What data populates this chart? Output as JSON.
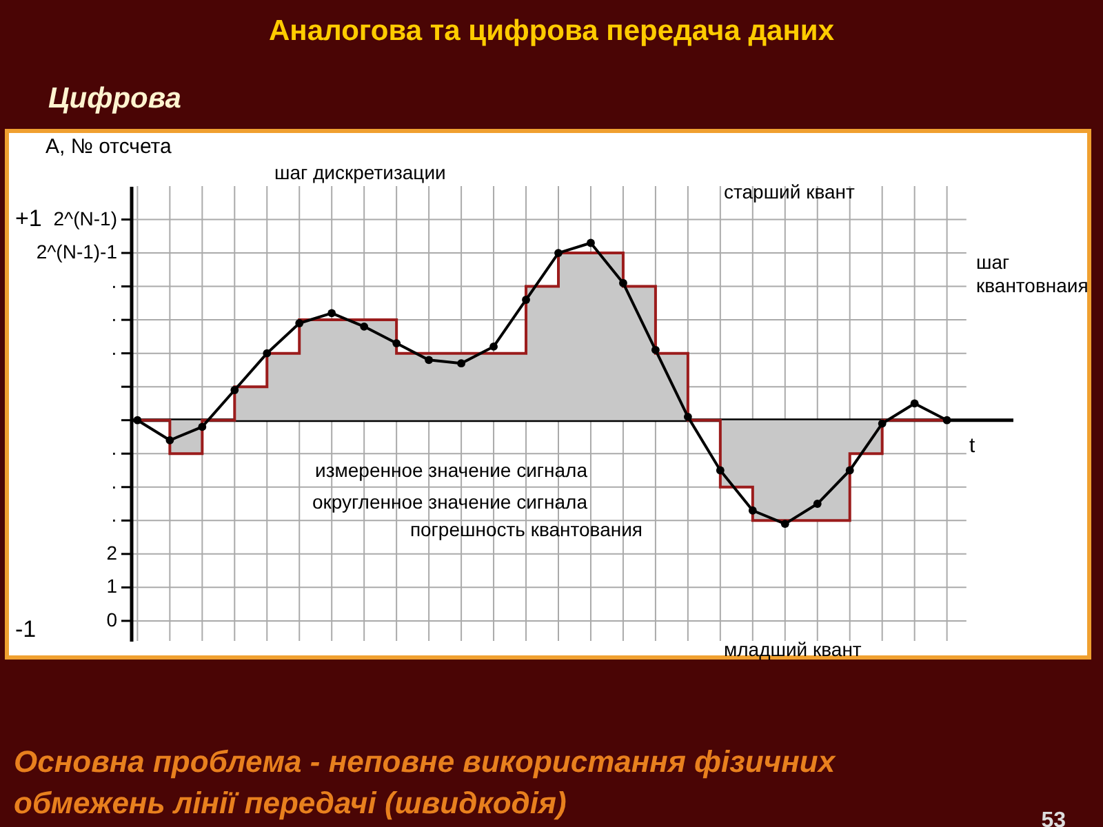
{
  "chart_data": {
    "type": "line",
    "title": "Аналогова та цифрова передача даних",
    "subtitle": "Цифрова",
    "xlabel": "t",
    "ylabel": "A, № отсчета",
    "categories": [
      null,
      null,
      null,
      null,
      null,
      null,
      null,
      null,
      null,
      null,
      null,
      null,
      null,
      null,
      null,
      null,
      null,
      null,
      null,
      null,
      null,
      null,
      null,
      null,
      null,
      null
    ],
    "ylim": [
      -0.6,
      13
    ],
    "yticks": [
      0,
      1,
      2,
      {
        "value": 3,
        "label": "·"
      },
      {
        "value": 4,
        "label": "·"
      },
      {
        "value": 5,
        "label": "·"
      },
      {
        "value": 6,
        "label": null
      },
      {
        "value": 7,
        "label": null
      },
      {
        "value": 8,
        "label": "·"
      },
      {
        "value": 9,
        "label": "·"
      },
      {
        "value": 10,
        "label": "·"
      },
      {
        "value": 11,
        "label": "2^(N-1)-1"
      },
      {
        "value": 12,
        "label": "2^(N-1)"
      }
    ],
    "tick_labels": "y",
    "grid": true,
    "ref_lines": [
      {
        "axis": "y",
        "value": 6,
        "color": "#000000"
      }
    ],
    "series": [
      {
        "type": "step",
        "color": "#9b1c1c",
        "values": [
          6,
          5,
          6,
          7,
          8,
          9,
          9,
          9,
          8,
          8,
          8,
          8,
          10,
          11,
          11,
          10,
          8,
          6,
          4,
          3,
          3,
          3,
          5,
          6,
          6,
          6
        ]
      },
      {
        "type": "line",
        "color": "#000000",
        "marker": "circle",
        "values": [
          6,
          5.4,
          5.8,
          6.9,
          8.0,
          8.9,
          9.2,
          8.8,
          8.3,
          7.8,
          7.7,
          8.2,
          9.6,
          11.0,
          11.3,
          10.1,
          8.1,
          6.1,
          4.5,
          3.3,
          2.9,
          3.5,
          4.5,
          5.9,
          6.5,
          6
        ]
      }
    ],
    "annotations": [
      "шаг дискретизации",
      "старший квант",
      "шаг квантовнаия",
      "измеренное значение сигнала",
      "округленное значение сигнала",
      "погрешность квантования",
      "младший квант",
      "+1",
      "-1",
      "Основна проблема - неповне використання фізичних обмежень лінії передачі (швидкодія)",
      "53"
    ]
  }
}
